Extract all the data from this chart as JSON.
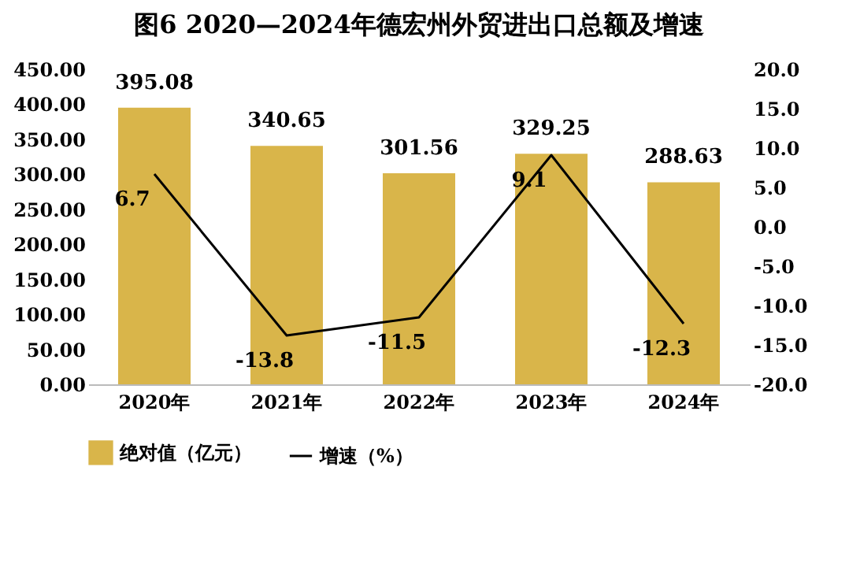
{
  "chart_data": {
    "type": "bar",
    "title": "图6  2020—2024年德宏州外贸进出口总额及增速",
    "categories": [
      "2020年",
      "2021年",
      "2022年",
      "2023年",
      "2024年"
    ],
    "series": [
      {
        "name": "绝对值（亿元）",
        "color": "#d9b54a",
        "values": [
          395.08,
          340.65,
          301.56,
          329.25,
          288.63
        ]
      },
      {
        "name": "增速（%）",
        "type": "line",
        "axis": "y2",
        "color": "#000000",
        "values": [
          6.7,
          -13.8,
          -11.5,
          9.1,
          -12.3
        ]
      }
    ],
    "ylim": [
      0,
      450
    ],
    "yticks": [
      {
        "value": 0,
        "label": "0.00"
      },
      {
        "value": 50,
        "label": "50.00"
      },
      {
        "value": 100,
        "label": "100.00"
      },
      {
        "value": 150,
        "label": "150.00"
      },
      {
        "value": 200,
        "label": "200.00"
      },
      {
        "value": 250,
        "label": "250.00"
      },
      {
        "value": 300,
        "label": "300.00"
      },
      {
        "value": 350,
        "label": "350.00"
      },
      {
        "value": 400,
        "label": "400.00"
      },
      {
        "value": 450,
        "label": "450.00"
      }
    ],
    "y2lim": [
      -20,
      20
    ],
    "y2ticks": [
      {
        "value": -20,
        "label": "-20.0"
      },
      {
        "value": -15,
        "label": "-15.0"
      },
      {
        "value": -10,
        "label": "-10.0"
      },
      {
        "value": -5,
        "label": "-5.0"
      },
      {
        "value": 0,
        "label": "0.0"
      },
      {
        "value": 5,
        "label": "5.0"
      },
      {
        "value": 10,
        "label": "10.0"
      },
      {
        "value": 15,
        "label": "15.0"
      },
      {
        "value": 20,
        "label": "20.0"
      }
    ],
    "data_labels": true,
    "legend": "bottom"
  }
}
